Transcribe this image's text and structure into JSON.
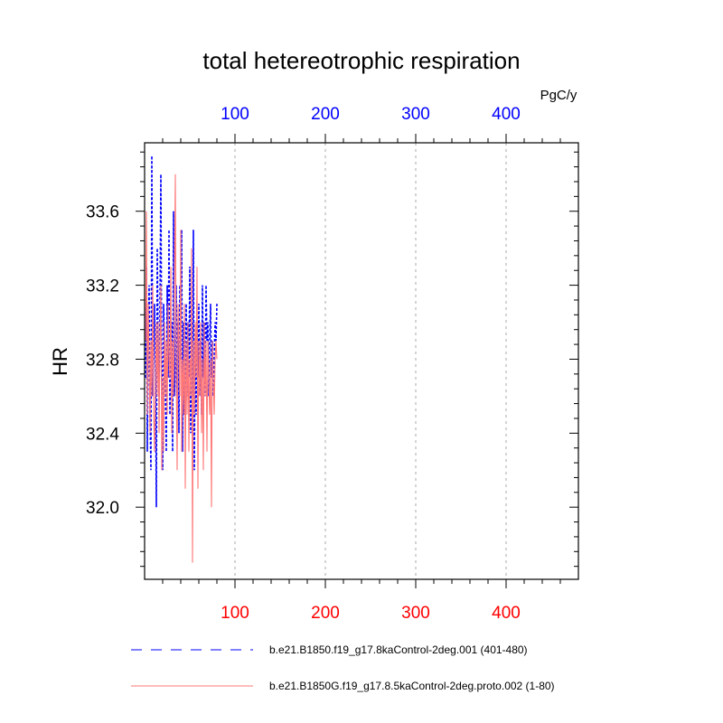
{
  "chart_data": {
    "type": "line",
    "title": "total hetereotrophic respiration",
    "ylabel": "HR",
    "units_label": "PgC/y",
    "xlim": [
      0,
      480
    ],
    "ylim": [
      31.61,
      33.97
    ],
    "x_ticks": [
      100,
      200,
      300,
      400
    ],
    "y_ticks": [
      32.0,
      32.4,
      32.8,
      33.2,
      33.6
    ],
    "y_tick_labels": [
      "32.0",
      "32.4",
      "32.8",
      "33.2",
      "33.6"
    ],
    "top_axis_color": "#0000ff",
    "bottom_axis_color": "#ff0000",
    "x_grid": true,
    "legend_position": "bottom",
    "series": [
      {
        "name": "b.e21.B1850.f19_g17.8kaControl-2deg.001 (401-480)",
        "color": "#0000ff",
        "dash": "dashed",
        "axis": "top",
        "x": [
          1,
          2,
          3,
          4,
          5,
          6,
          7,
          8,
          9,
          10,
          11,
          12,
          13,
          14,
          15,
          16,
          17,
          18,
          19,
          20,
          21,
          22,
          23,
          24,
          25,
          26,
          27,
          28,
          29,
          30,
          31,
          32,
          33,
          34,
          35,
          36,
          37,
          38,
          39,
          40,
          41,
          42,
          43,
          44,
          45,
          46,
          47,
          48,
          49,
          50,
          51,
          52,
          53,
          54,
          55,
          56,
          57,
          58,
          59,
          60,
          61,
          62,
          63,
          64,
          65,
          66,
          67,
          68,
          69,
          70,
          71,
          72,
          73,
          74,
          75,
          76,
          77,
          78,
          79,
          80
        ],
        "values": [
          32.7,
          33.3,
          32.3,
          32.9,
          33.2,
          32.5,
          32.2,
          33.9,
          32.6,
          32.8,
          33.1,
          32.7,
          32.0,
          33.4,
          32.9,
          32.6,
          33.1,
          33.8,
          32.7,
          32.2,
          33.1,
          32.9,
          32.6,
          32.3,
          33.2,
          32.7,
          33.5,
          32.5,
          32.8,
          33.0,
          32.3,
          33.6,
          32.6,
          32.8,
          33.2,
          32.6,
          33.0,
          32.4,
          33.2,
          32.8,
          33.5,
          32.3,
          33.0,
          32.5,
          32.8,
          33.1,
          32.6,
          33.0,
          32.7,
          33.3,
          32.4,
          33.0,
          32.6,
          33.5,
          32.2,
          32.9,
          32.5,
          33.0,
          32.7,
          33.1,
          32.6,
          32.9,
          32.5,
          33.2,
          32.7,
          33.0,
          32.6,
          33.2,
          32.9,
          33.0,
          32.6,
          32.9,
          33.1,
          32.7,
          32.9,
          32.6,
          32.8,
          33.0,
          32.9,
          33.1
        ]
      },
      {
        "name": "b.e21.B1850G.f19_g17.8.5kaControl-2deg.proto.002 (1-80)",
        "color": "#ff7777",
        "dash": "solid",
        "axis": "bottom",
        "x": [
          1,
          2,
          3,
          4,
          5,
          6,
          7,
          8,
          9,
          10,
          11,
          12,
          13,
          14,
          15,
          16,
          17,
          18,
          19,
          20,
          21,
          22,
          23,
          24,
          25,
          26,
          27,
          28,
          29,
          30,
          31,
          32,
          33,
          34,
          35,
          36,
          37,
          38,
          39,
          40,
          41,
          42,
          43,
          44,
          45,
          46,
          47,
          48,
          49,
          50,
          51,
          52,
          53,
          54,
          55,
          56,
          57,
          58,
          59,
          60,
          61,
          62,
          63,
          64,
          65,
          66,
          67,
          68,
          69,
          70,
          71,
          72,
          73,
          74,
          75,
          76,
          77,
          78,
          79,
          80
        ],
        "values": [
          32.9,
          33.6,
          32.5,
          33.1,
          32.8,
          32.4,
          32.9,
          32.6,
          33.2,
          32.5,
          32.3,
          32.7,
          33.0,
          32.6,
          33.0,
          32.4,
          32.9,
          33.2,
          32.2,
          32.7,
          32.3,
          33.0,
          32.6,
          32.9,
          32.5,
          33.1,
          32.8,
          32.7,
          33.3,
          32.4,
          32.9,
          32.6,
          33.2,
          33.8,
          32.7,
          32.2,
          33.1,
          32.9,
          32.6,
          33.5,
          32.3,
          32.8,
          32.5,
          33.1,
          32.1,
          32.9,
          32.5,
          33.0,
          32.3,
          32.8,
          32.6,
          33.4,
          31.7,
          32.9,
          32.5,
          33.0,
          32.7,
          33.3,
          32.1,
          32.9,
          32.6,
          33.0,
          32.4,
          32.8,
          32.2,
          33.0,
          32.6,
          32.9,
          32.3,
          32.9,
          32.7,
          32.5,
          32.8,
          32.0,
          32.9,
          32.7,
          32.5,
          32.8,
          32.9,
          32.8
        ]
      }
    ]
  }
}
